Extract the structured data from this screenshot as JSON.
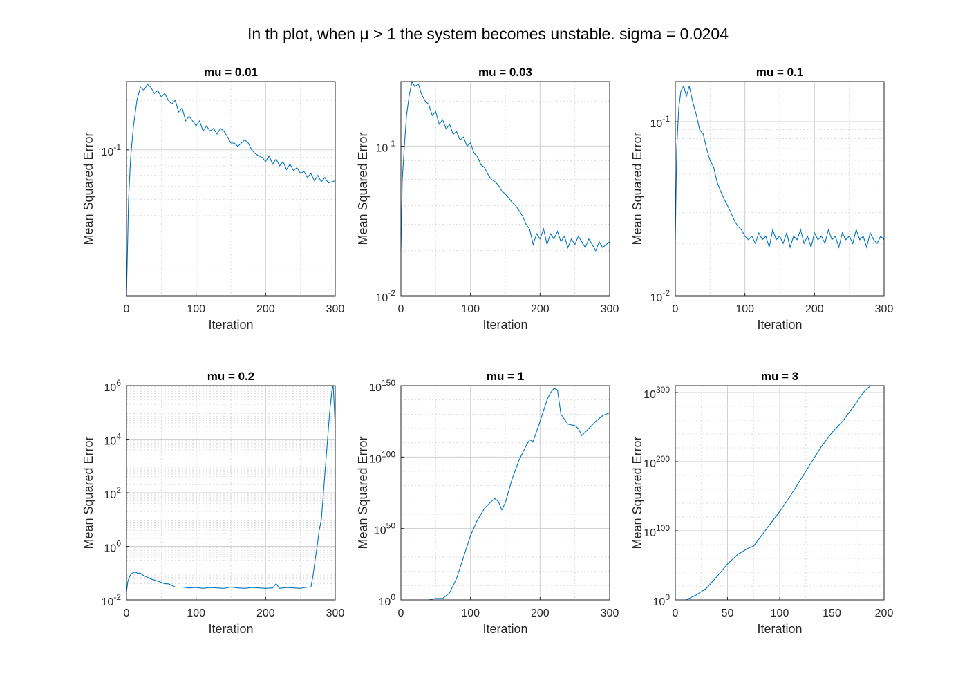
{
  "figure": {
    "title": "In th plot, when μ > 1 the system becomes unstable. sigma = 0.0204"
  },
  "colors": {
    "line": "#0072BD",
    "axis": "#262626",
    "grid": "#dcdcdc"
  },
  "chart_data": [
    {
      "type": "line",
      "title": "mu = 0.01",
      "xlabel": "Iteration",
      "ylabel": "Mean Squared Error",
      "yscale": "log",
      "xlim": [
        0,
        300
      ],
      "ylim": [
        0.013,
        0.26
      ],
      "grid": true,
      "xticks": [
        0,
        100,
        200,
        300
      ],
      "yticks": [
        {
          "exp": "-1",
          "value": 0.1
        }
      ],
      "series": [
        {
          "x": [
            0,
            3,
            6,
            10,
            15,
            20,
            25,
            30,
            35,
            40,
            45,
            50,
            55,
            60,
            65,
            70,
            75,
            80,
            85,
            90,
            95,
            100,
            105,
            110,
            115,
            120,
            125,
            130,
            135,
            140,
            145,
            150,
            155,
            160,
            165,
            170,
            175,
            180,
            185,
            190,
            195,
            200,
            205,
            210,
            215,
            220,
            225,
            230,
            235,
            240,
            245,
            250,
            255,
            260,
            265,
            270,
            275,
            280,
            285,
            290,
            295,
            300
          ],
          "y": [
            0.013,
            0.05,
            0.09,
            0.14,
            0.2,
            0.24,
            0.23,
            0.25,
            0.24,
            0.22,
            0.23,
            0.21,
            0.22,
            0.2,
            0.19,
            0.2,
            0.17,
            0.18,
            0.15,
            0.16,
            0.15,
            0.14,
            0.15,
            0.13,
            0.14,
            0.13,
            0.135,
            0.125,
            0.135,
            0.13,
            0.12,
            0.11,
            0.11,
            0.105,
            0.11,
            0.115,
            0.11,
            0.1,
            0.095,
            0.092,
            0.09,
            0.085,
            0.092,
            0.082,
            0.088,
            0.08,
            0.085,
            0.076,
            0.082,
            0.075,
            0.078,
            0.072,
            0.074,
            0.068,
            0.072,
            0.065,
            0.07,
            0.064,
            0.068,
            0.063,
            0.064,
            0.065
          ]
        }
      ]
    },
    {
      "type": "line",
      "title": "mu = 0.03",
      "xlabel": "Iteration",
      "ylabel": "Mean Squared Error",
      "yscale": "log",
      "xlim": [
        0,
        300
      ],
      "ylim": [
        0.01,
        0.27
      ],
      "grid": true,
      "xticks": [
        0,
        100,
        200,
        300
      ],
      "yticks": [
        {
          "exp": "-2",
          "value": 0.01
        },
        {
          "exp": "-1",
          "value": 0.1
        }
      ],
      "series": [
        {
          "x": [
            0,
            2,
            5,
            8,
            12,
            16,
            20,
            25,
            30,
            35,
            40,
            45,
            50,
            55,
            60,
            65,
            70,
            75,
            80,
            85,
            90,
            95,
            100,
            105,
            110,
            115,
            120,
            125,
            130,
            135,
            140,
            145,
            150,
            155,
            160,
            165,
            170,
            175,
            180,
            185,
            190,
            195,
            200,
            205,
            210,
            215,
            220,
            225,
            230,
            235,
            240,
            245,
            250,
            255,
            260,
            265,
            270,
            275,
            280,
            285,
            290,
            295,
            300
          ],
          "y": [
            0.02,
            0.06,
            0.1,
            0.16,
            0.22,
            0.27,
            0.25,
            0.26,
            0.22,
            0.2,
            0.19,
            0.16,
            0.17,
            0.14,
            0.15,
            0.13,
            0.14,
            0.12,
            0.125,
            0.11,
            0.115,
            0.1,
            0.105,
            0.09,
            0.085,
            0.075,
            0.072,
            0.065,
            0.06,
            0.058,
            0.055,
            0.05,
            0.048,
            0.045,
            0.042,
            0.04,
            0.037,
            0.034,
            0.03,
            0.028,
            0.022,
            0.026,
            0.024,
            0.028,
            0.022,
            0.026,
            0.024,
            0.027,
            0.023,
            0.025,
            0.021,
            0.024,
            0.022,
            0.025,
            0.023,
            0.021,
            0.024,
            0.022,
            0.02,
            0.023,
            0.021,
            0.022,
            0.023
          ]
        }
      ]
    },
    {
      "type": "line",
      "title": "mu = 0.1",
      "xlabel": "Iteration",
      "ylabel": "Mean Squared Error",
      "yscale": "log",
      "xlim": [
        0,
        300
      ],
      "ylim": [
        0.01,
        0.17
      ],
      "grid": true,
      "xticks": [
        0,
        100,
        200,
        300
      ],
      "yticks": [
        {
          "exp": "-2",
          "value": 0.01
        },
        {
          "exp": "-1",
          "value": 0.1
        }
      ],
      "series": [
        {
          "x": [
            0,
            2,
            5,
            8,
            12,
            16,
            20,
            25,
            30,
            35,
            40,
            45,
            50,
            55,
            60,
            65,
            70,
            75,
            80,
            85,
            90,
            95,
            100,
            105,
            110,
            115,
            120,
            125,
            130,
            135,
            140,
            145,
            150,
            155,
            160,
            165,
            170,
            175,
            180,
            185,
            190,
            195,
            200,
            205,
            210,
            215,
            220,
            225,
            230,
            235,
            240,
            245,
            250,
            255,
            260,
            265,
            270,
            275,
            280,
            285,
            290,
            295,
            300
          ],
          "y": [
            0.021,
            0.07,
            0.12,
            0.15,
            0.16,
            0.14,
            0.16,
            0.13,
            0.11,
            0.09,
            0.085,
            0.07,
            0.06,
            0.055,
            0.045,
            0.04,
            0.036,
            0.033,
            0.03,
            0.027,
            0.025,
            0.024,
            0.022,
            0.021,
            0.022,
            0.02,
            0.023,
            0.021,
            0.022,
            0.019,
            0.024,
            0.021,
            0.022,
            0.02,
            0.023,
            0.019,
            0.022,
            0.021,
            0.024,
            0.02,
            0.022,
            0.019,
            0.023,
            0.021,
            0.022,
            0.02,
            0.024,
            0.021,
            0.022,
            0.019,
            0.023,
            0.021,
            0.022,
            0.02,
            0.024,
            0.021,
            0.022,
            0.019,
            0.023,
            0.021,
            0.02,
            0.022,
            0.021
          ]
        }
      ]
    },
    {
      "type": "line",
      "title": "mu = 0.2",
      "xlabel": "Iteration",
      "ylabel": "Mean Squared Error",
      "yscale": "log",
      "xlim": [
        0,
        300
      ],
      "ylim": [
        0.01,
        1000000
      ],
      "grid": true,
      "xticks": [
        0,
        100,
        200,
        300
      ],
      "yticks": [
        {
          "exp": "-2",
          "value": 0.01
        },
        {
          "exp": "0",
          "value": 1
        },
        {
          "exp": "2",
          "value": 100
        },
        {
          "exp": "4",
          "value": 10000
        },
        {
          "exp": "6",
          "value": 1000000
        }
      ],
      "series": [
        {
          "x": [
            0,
            2,
            5,
            8,
            12,
            16,
            20,
            25,
            30,
            35,
            40,
            45,
            50,
            55,
            60,
            65,
            70,
            75,
            80,
            90,
            100,
            110,
            120,
            130,
            140,
            150,
            160,
            170,
            180,
            190,
            200,
            210,
            215,
            220,
            230,
            240,
            250,
            260,
            265,
            268,
            271,
            274,
            277,
            280,
            283,
            286,
            289,
            292,
            295,
            297,
            300
          ],
          "y": [
            0.02,
            0.05,
            0.08,
            0.1,
            0.11,
            0.1,
            0.1,
            0.08,
            0.07,
            0.06,
            0.055,
            0.05,
            0.045,
            0.04,
            0.04,
            0.035,
            0.03,
            0.03,
            0.03,
            0.028,
            0.029,
            0.027,
            0.029,
            0.028,
            0.027,
            0.03,
            0.028,
            0.027,
            0.029,
            0.028,
            0.027,
            0.028,
            0.04,
            0.027,
            0.029,
            0.028,
            0.027,
            0.03,
            0.03,
            0.08,
            0.3,
            1,
            4,
            10,
            100,
            1000,
            10000,
            100000,
            600000,
            1000000,
            30000
          ]
        }
      ]
    },
    {
      "type": "line",
      "title": "mu = 1",
      "xlabel": "Iteration",
      "ylabel": "Mean Squared Error",
      "yscale": "log",
      "xlim": [
        0,
        300
      ],
      "ylim": [
        0,
        150
      ],
      "ylim_note": "log10 exponents",
      "grid": true,
      "xticks": [
        0,
        100,
        200,
        300
      ],
      "yticks": [
        {
          "exp": "0",
          "value": 0
        },
        {
          "exp": "50",
          "value": 50
        },
        {
          "exp": "100",
          "value": 100
        },
        {
          "exp": "150",
          "value": 150
        }
      ],
      "series": [
        {
          "x": [
            0,
            20,
            40,
            50,
            60,
            70,
            80,
            90,
            100,
            110,
            120,
            130,
            135,
            140,
            145,
            150,
            160,
            170,
            180,
            185,
            190,
            200,
            210,
            215,
            220,
            225,
            230,
            240,
            250,
            255,
            260,
            270,
            280,
            290,
            300
          ],
          "y": [
            0,
            0,
            0,
            1,
            1,
            5,
            15,
            30,
            45,
            56,
            64,
            69,
            71,
            69,
            63,
            68,
            85,
            98,
            108,
            112,
            111,
            125,
            140,
            145,
            148,
            147,
            130,
            123,
            122,
            120,
            115,
            120,
            125,
            129,
            131
          ]
        }
      ]
    },
    {
      "type": "line",
      "title": "mu = 3",
      "xlabel": "Iteration",
      "ylabel": "Mean Squared Error",
      "yscale": "log",
      "xlim": [
        0,
        200
      ],
      "ylim": [
        0,
        310
      ],
      "ylim_note": "log10 exponents",
      "grid": true,
      "xticks": [
        0,
        50,
        100,
        150,
        200
      ],
      "yticks": [
        {
          "exp": "0",
          "value": 0
        },
        {
          "exp": "100",
          "value": 100
        },
        {
          "exp": "200",
          "value": 200
        },
        {
          "exp": "300",
          "value": 300
        }
      ],
      "series": [
        {
          "x": [
            0,
            10,
            20,
            30,
            40,
            50,
            60,
            70,
            75,
            80,
            90,
            100,
            110,
            120,
            130,
            140,
            150,
            160,
            170,
            180,
            187
          ],
          "y": [
            0,
            0,
            7,
            17,
            34,
            52,
            66,
            75,
            78,
            88,
            108,
            128,
            150,
            174,
            198,
            222,
            242,
            258,
            278,
            300,
            315
          ]
        }
      ]
    }
  ]
}
